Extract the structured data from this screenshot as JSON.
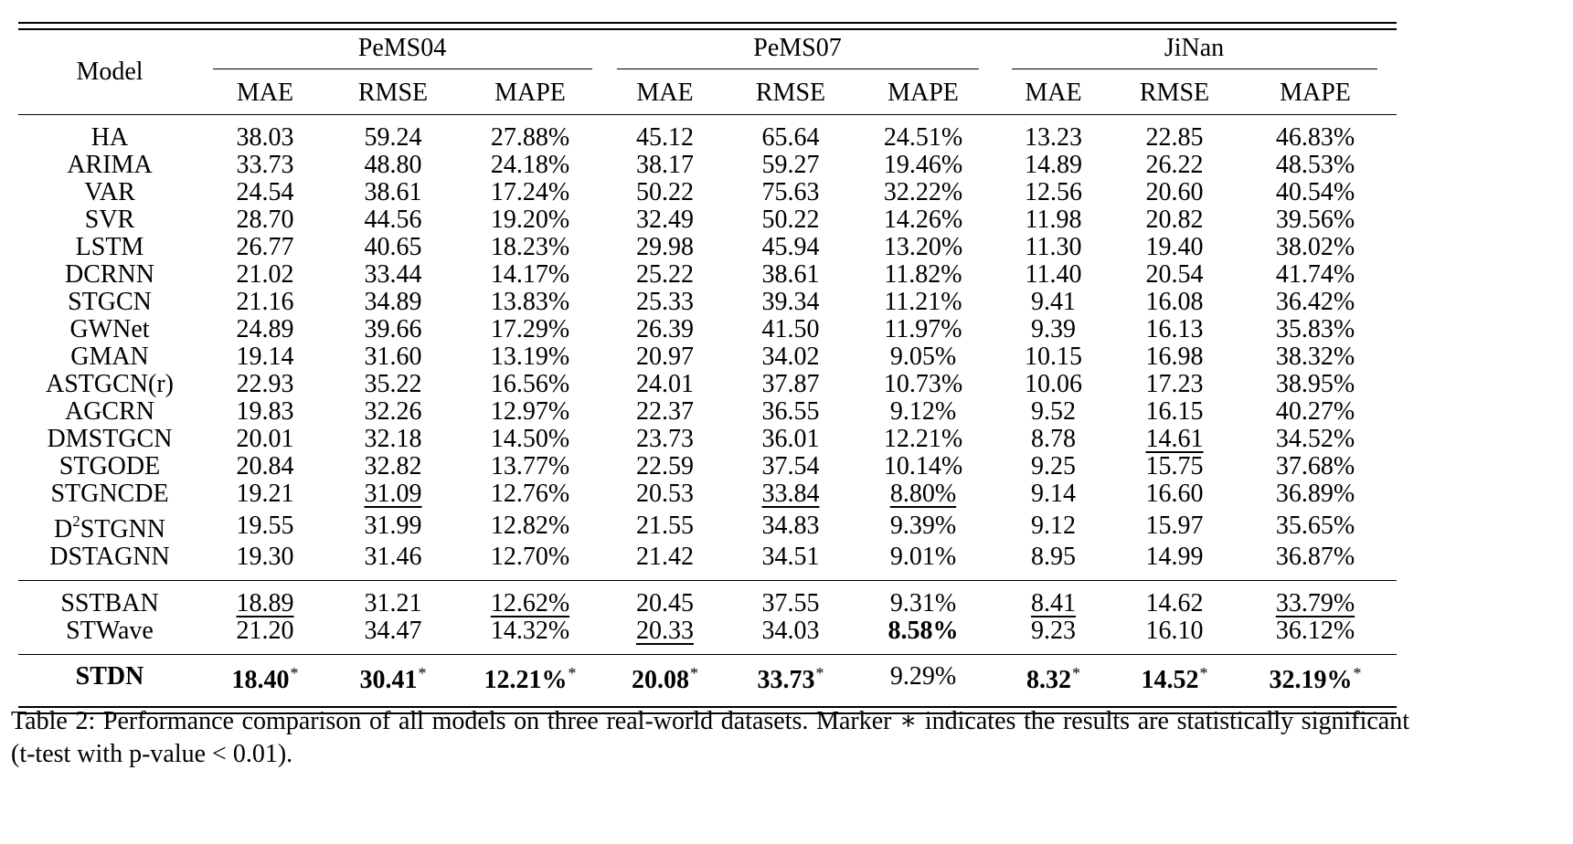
{
  "table": {
    "model_header": "Model",
    "datasets": [
      "PeMS04",
      "PeMS07",
      "JiNan"
    ],
    "metrics": [
      "MAE",
      "RMSE",
      "MAPE"
    ],
    "blocks": [
      [
        {
          "model": "HA",
          "cells": [
            [
              "38.03",
              ""
            ],
            [
              "59.24",
              ""
            ],
            [
              "27.88%",
              ""
            ],
            [
              "45.12",
              ""
            ],
            [
              "65.64",
              ""
            ],
            [
              "24.51%",
              ""
            ],
            [
              "13.23",
              ""
            ],
            [
              "22.85",
              ""
            ],
            [
              "46.83%",
              ""
            ]
          ]
        },
        {
          "model": "ARIMA",
          "cells": [
            [
              "33.73",
              ""
            ],
            [
              "48.80",
              ""
            ],
            [
              "24.18%",
              ""
            ],
            [
              "38.17",
              ""
            ],
            [
              "59.27",
              ""
            ],
            [
              "19.46%",
              ""
            ],
            [
              "14.89",
              ""
            ],
            [
              "26.22",
              ""
            ],
            [
              "48.53%",
              ""
            ]
          ]
        },
        {
          "model": "VAR",
          "cells": [
            [
              "24.54",
              ""
            ],
            [
              "38.61",
              ""
            ],
            [
              "17.24%",
              ""
            ],
            [
              "50.22",
              ""
            ],
            [
              "75.63",
              ""
            ],
            [
              "32.22%",
              ""
            ],
            [
              "12.56",
              ""
            ],
            [
              "20.60",
              ""
            ],
            [
              "40.54%",
              ""
            ]
          ]
        },
        {
          "model": "SVR",
          "cells": [
            [
              "28.70",
              ""
            ],
            [
              "44.56",
              ""
            ],
            [
              "19.20%",
              ""
            ],
            [
              "32.49",
              ""
            ],
            [
              "50.22",
              ""
            ],
            [
              "14.26%",
              ""
            ],
            [
              "11.98",
              ""
            ],
            [
              "20.82",
              ""
            ],
            [
              "39.56%",
              ""
            ]
          ]
        },
        {
          "model": "LSTM",
          "cells": [
            [
              "26.77",
              ""
            ],
            [
              "40.65",
              ""
            ],
            [
              "18.23%",
              ""
            ],
            [
              "29.98",
              ""
            ],
            [
              "45.94",
              ""
            ],
            [
              "13.20%",
              ""
            ],
            [
              "11.30",
              ""
            ],
            [
              "19.40",
              ""
            ],
            [
              "38.02%",
              ""
            ]
          ]
        },
        {
          "model": "DCRNN",
          "cells": [
            [
              "21.02",
              ""
            ],
            [
              "33.44",
              ""
            ],
            [
              "14.17%",
              ""
            ],
            [
              "25.22",
              ""
            ],
            [
              "38.61",
              ""
            ],
            [
              "11.82%",
              ""
            ],
            [
              "11.40",
              ""
            ],
            [
              "20.54",
              ""
            ],
            [
              "41.74%",
              ""
            ]
          ]
        },
        {
          "model": "STGCN",
          "cells": [
            [
              "21.16",
              ""
            ],
            [
              "34.89",
              ""
            ],
            [
              "13.83%",
              ""
            ],
            [
              "25.33",
              ""
            ],
            [
              "39.34",
              ""
            ],
            [
              "11.21%",
              ""
            ],
            [
              "9.41",
              ""
            ],
            [
              "16.08",
              ""
            ],
            [
              "36.42%",
              ""
            ]
          ]
        },
        {
          "model": "GWNet",
          "cells": [
            [
              "24.89",
              ""
            ],
            [
              "39.66",
              ""
            ],
            [
              "17.29%",
              ""
            ],
            [
              "26.39",
              ""
            ],
            [
              "41.50",
              ""
            ],
            [
              "11.97%",
              ""
            ],
            [
              "9.39",
              ""
            ],
            [
              "16.13",
              ""
            ],
            [
              "35.83%",
              ""
            ]
          ]
        },
        {
          "model": "GMAN",
          "cells": [
            [
              "19.14",
              ""
            ],
            [
              "31.60",
              ""
            ],
            [
              "13.19%",
              ""
            ],
            [
              "20.97",
              ""
            ],
            [
              "34.02",
              ""
            ],
            [
              "9.05%",
              ""
            ],
            [
              "10.15",
              ""
            ],
            [
              "16.98",
              ""
            ],
            [
              "38.32%",
              ""
            ]
          ]
        },
        {
          "model": "ASTGCN(r)",
          "cells": [
            [
              "22.93",
              ""
            ],
            [
              "35.22",
              ""
            ],
            [
              "16.56%",
              ""
            ],
            [
              "24.01",
              ""
            ],
            [
              "37.87",
              ""
            ],
            [
              "10.73%",
              ""
            ],
            [
              "10.06",
              ""
            ],
            [
              "17.23",
              ""
            ],
            [
              "38.95%",
              ""
            ]
          ]
        },
        {
          "model": "AGCRN",
          "cells": [
            [
              "19.83",
              ""
            ],
            [
              "32.26",
              ""
            ],
            [
              "12.97%",
              ""
            ],
            [
              "22.37",
              ""
            ],
            [
              "36.55",
              ""
            ],
            [
              "9.12%",
              ""
            ],
            [
              "9.52",
              ""
            ],
            [
              "16.15",
              ""
            ],
            [
              "40.27%",
              ""
            ]
          ]
        },
        {
          "model": "DMSTGCN",
          "cells": [
            [
              "20.01",
              ""
            ],
            [
              "32.18",
              ""
            ],
            [
              "14.50%",
              ""
            ],
            [
              "23.73",
              ""
            ],
            [
              "36.01",
              ""
            ],
            [
              "12.21%",
              ""
            ],
            [
              "8.78",
              ""
            ],
            [
              "14.61",
              "u"
            ],
            [
              "34.52%",
              ""
            ]
          ]
        },
        {
          "model": "STGODE",
          "cells": [
            [
              "20.84",
              ""
            ],
            [
              "32.82",
              ""
            ],
            [
              "13.77%",
              ""
            ],
            [
              "22.59",
              ""
            ],
            [
              "37.54",
              ""
            ],
            [
              "10.14%",
              ""
            ],
            [
              "9.25",
              ""
            ],
            [
              "15.75",
              ""
            ],
            [
              "37.68%",
              ""
            ]
          ]
        },
        {
          "model": "STGNCDE",
          "cells": [
            [
              "19.21",
              ""
            ],
            [
              "31.09",
              "u"
            ],
            [
              "12.76%",
              ""
            ],
            [
              "20.53",
              ""
            ],
            [
              "33.84",
              "u"
            ],
            [
              "8.80%",
              "u"
            ],
            [
              "9.14",
              ""
            ],
            [
              "16.60",
              ""
            ],
            [
              "36.89%",
              ""
            ]
          ]
        },
        {
          "model": "D",
          "model_sup": "2",
          "model_rest": "STGNN",
          "cells": [
            [
              "19.55",
              ""
            ],
            [
              "31.99",
              ""
            ],
            [
              "12.82%",
              ""
            ],
            [
              "21.55",
              ""
            ],
            [
              "34.83",
              ""
            ],
            [
              "9.39%",
              ""
            ],
            [
              "9.12",
              ""
            ],
            [
              "15.97",
              ""
            ],
            [
              "35.65%",
              ""
            ]
          ]
        },
        {
          "model": "DSTAGNN",
          "cells": [
            [
              "19.30",
              ""
            ],
            [
              "31.46",
              ""
            ],
            [
              "12.70%",
              ""
            ],
            [
              "21.42",
              ""
            ],
            [
              "34.51",
              ""
            ],
            [
              "9.01%",
              ""
            ],
            [
              "8.95",
              ""
            ],
            [
              "14.99",
              ""
            ],
            [
              "36.87%",
              ""
            ]
          ]
        }
      ],
      [
        {
          "model": "SSTBAN",
          "cells": [
            [
              "18.89",
              "u"
            ],
            [
              "31.21",
              ""
            ],
            [
              "12.62%",
              "u"
            ],
            [
              "20.45",
              ""
            ],
            [
              "37.55",
              ""
            ],
            [
              "9.31%",
              ""
            ],
            [
              "8.41",
              "u"
            ],
            [
              "14.62",
              ""
            ],
            [
              "33.79%",
              "u"
            ]
          ]
        },
        {
          "model": "STWave",
          "cells": [
            [
              "21.20",
              ""
            ],
            [
              "34.47",
              ""
            ],
            [
              "14.32%",
              ""
            ],
            [
              "20.33",
              "u"
            ],
            [
              "34.03",
              ""
            ],
            [
              "8.58%",
              "b"
            ],
            [
              "9.23",
              ""
            ],
            [
              "16.10",
              ""
            ],
            [
              "36.12%",
              ""
            ]
          ]
        }
      ],
      [
        {
          "model": "STDN",
          "model_bold": true,
          "cells": [
            [
              "18.40",
              "b*"
            ],
            [
              "30.41",
              "b*"
            ],
            [
              "12.21%",
              "b*"
            ],
            [
              "20.08",
              "b*"
            ],
            [
              "33.73",
              "b*"
            ],
            [
              "9.29%",
              ""
            ],
            [
              "8.32",
              "b*"
            ],
            [
              "14.52",
              "b*"
            ],
            [
              "32.19%",
              "b*"
            ]
          ]
        }
      ]
    ],
    "star_marker": "*"
  },
  "caption": "Table 2: Performance comparison of all models on three real-world datasets. Marker ∗ indicates the results are statistically significant (t-test with p-value < 0.01)."
}
